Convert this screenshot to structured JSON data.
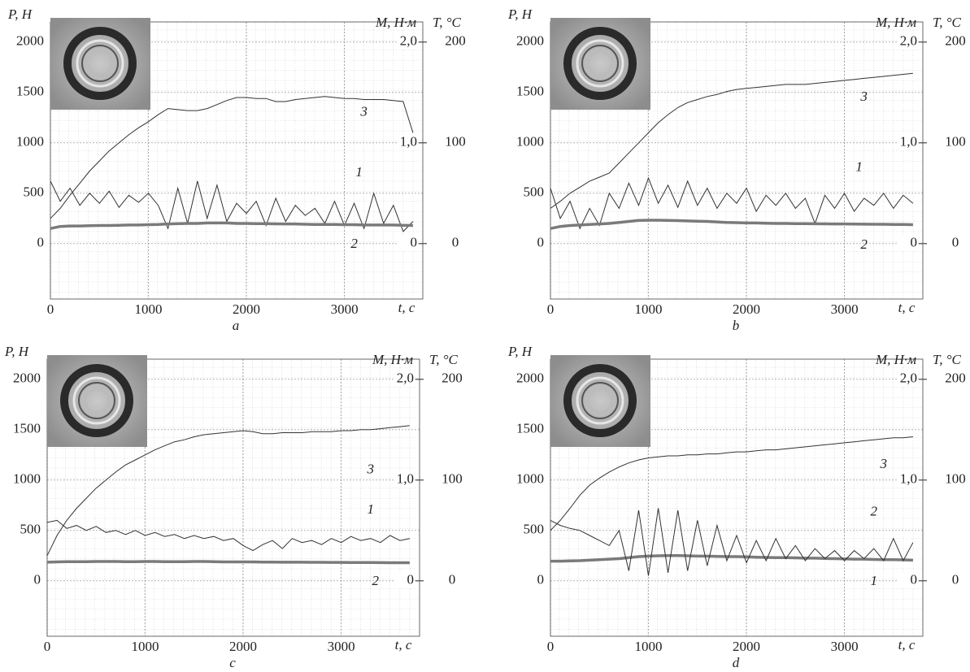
{
  "chart_data": [
    {
      "type": "line",
      "panel_label": "a",
      "y_label": "P, Н",
      "y2_label": "M, Н·м",
      "y3_label": "T, °C",
      "x_label": "t, c",
      "grid": true,
      "xlim": [
        0,
        3800
      ],
      "xticks": [
        0,
        1000,
        2000,
        3000
      ],
      "ylim": [
        -550,
        2200
      ],
      "yticks": [
        0,
        500,
        1000,
        1500,
        2000
      ],
      "y2lim": [
        -0.55,
        2.2
      ],
      "y2ticks": [
        0,
        {
          "value": 1,
          "label": "1,0"
        },
        {
          "value": 2,
          "label": "2,0"
        }
      ],
      "y3lim": [
        -55,
        220
      ],
      "y3ticks": [
        0,
        100,
        200
      ],
      "x": [
        0,
        100,
        200,
        300,
        400,
        500,
        600,
        700,
        800,
        900,
        1000,
        1100,
        1200,
        1300,
        1400,
        1500,
        1600,
        1700,
        1800,
        1900,
        2000,
        2100,
        2200,
        2300,
        2400,
        2500,
        2600,
        2700,
        2800,
        2900,
        3000,
        3100,
        3200,
        3300,
        3400,
        3500,
        3600,
        3700
      ],
      "series": [
        {
          "name": "1",
          "color": "#333333",
          "axis": "y2",
          "values": [
            0.62,
            0.42,
            0.55,
            0.38,
            0.5,
            0.4,
            0.52,
            0.36,
            0.48,
            0.41,
            0.5,
            0.38,
            0.15,
            0.55,
            0.2,
            0.62,
            0.25,
            0.58,
            0.22,
            0.4,
            0.3,
            0.42,
            0.18,
            0.45,
            0.22,
            0.38,
            0.28,
            0.35,
            0.2,
            0.42,
            0.18,
            0.4,
            0.15,
            0.5,
            0.2,
            0.38,
            0.12,
            0.22
          ]
        },
        {
          "name": "2",
          "color": "#7a7a7a",
          "values": [
            150,
            170,
            175,
            175,
            178,
            180,
            180,
            182,
            185,
            185,
            188,
            190,
            195,
            198,
            200,
            200,
            205,
            205,
            205,
            200,
            200,
            198,
            198,
            196,
            195,
            195,
            192,
            190,
            190,
            190,
            188,
            188,
            185,
            185,
            185,
            185,
            182,
            180
          ]
        },
        {
          "name": "3",
          "color": "#333333",
          "axis": "y3",
          "values": [
            25,
            35,
            48,
            60,
            72,
            82,
            92,
            100,
            108,
            115,
            121,
            128,
            134,
            133,
            132,
            132,
            134,
            138,
            142,
            145,
            145,
            144,
            144,
            141,
            141,
            143,
            144,
            145,
            146,
            145,
            144,
            144,
            143,
            143,
            143,
            142,
            141,
            110
          ]
        }
      ]
    },
    {
      "type": "line",
      "panel_label": "b",
      "y_label": "P, Н",
      "y2_label": "M, Н·м",
      "y3_label": "T, °C",
      "x_label": "t, c",
      "grid": true,
      "xlim": [
        0,
        3800
      ],
      "xticks": [
        0,
        1000,
        2000,
        3000
      ],
      "ylim": [
        -550,
        2200
      ],
      "yticks": [
        0,
        500,
        1000,
        1500,
        2000
      ],
      "y2lim": [
        -0.55,
        2.2
      ],
      "y2ticks": [
        0,
        {
          "value": 1,
          "label": "1,0"
        },
        {
          "value": 2,
          "label": "2,0"
        }
      ],
      "y3lim": [
        -55,
        220
      ],
      "y3ticks": [
        0,
        100,
        200
      ],
      "x": [
        0,
        100,
        200,
        300,
        400,
        500,
        600,
        700,
        800,
        900,
        1000,
        1100,
        1200,
        1300,
        1400,
        1500,
        1600,
        1700,
        1800,
        1900,
        2000,
        2100,
        2200,
        2300,
        2400,
        2500,
        2600,
        2700,
        2800,
        2900,
        3000,
        3100,
        3200,
        3300,
        3400,
        3500,
        3600,
        3700
      ],
      "series": [
        {
          "name": "1",
          "color": "#333333",
          "axis": "y2",
          "values": [
            0.55,
            0.25,
            0.42,
            0.15,
            0.35,
            0.18,
            0.5,
            0.35,
            0.6,
            0.38,
            0.65,
            0.4,
            0.58,
            0.36,
            0.62,
            0.38,
            0.55,
            0.35,
            0.5,
            0.4,
            0.55,
            0.32,
            0.48,
            0.38,
            0.5,
            0.35,
            0.45,
            0.2,
            0.48,
            0.35,
            0.5,
            0.32,
            0.45,
            0.38,
            0.5,
            0.35,
            0.48,
            0.4
          ]
        },
        {
          "name": "2",
          "color": "#7a7a7a",
          "values": [
            150,
            170,
            180,
            185,
            190,
            195,
            200,
            210,
            220,
            230,
            232,
            232,
            230,
            228,
            225,
            222,
            220,
            215,
            210,
            208,
            205,
            205,
            202,
            200,
            200,
            198,
            198,
            197,
            196,
            195,
            195,
            194,
            193,
            192,
            192,
            190,
            190,
            188
          ]
        },
        {
          "name": "3",
          "color": "#333333",
          "axis": "y3",
          "values": [
            35,
            42,
            50,
            56,
            62,
            66,
            70,
            80,
            90,
            100,
            110,
            120,
            128,
            135,
            140,
            143,
            146,
            148,
            151,
            153,
            154,
            155,
            156,
            157,
            158,
            158,
            158,
            159,
            160,
            161,
            162,
            163,
            164,
            165,
            166,
            167,
            168,
            169
          ]
        }
      ]
    },
    {
      "type": "line",
      "panel_label": "c",
      "y_label": "P, Н",
      "y2_label": "M, Н·м",
      "y3_label": "T, °C",
      "x_label": "t, c",
      "grid": true,
      "xlim": [
        0,
        3800
      ],
      "xticks": [
        0,
        1000,
        2000,
        3000
      ],
      "ylim": [
        -550,
        2200
      ],
      "yticks": [
        0,
        500,
        1000,
        1500,
        2000
      ],
      "y2lim": [
        -0.55,
        2.2
      ],
      "y2ticks": [
        0,
        {
          "value": 1,
          "label": "1,0"
        },
        {
          "value": 2,
          "label": "2,0"
        }
      ],
      "y3lim": [
        -55,
        220
      ],
      "y3ticks": [
        0,
        100,
        200
      ],
      "x": [
        0,
        100,
        200,
        300,
        400,
        500,
        600,
        700,
        800,
        900,
        1000,
        1100,
        1200,
        1300,
        1400,
        1500,
        1600,
        1700,
        1800,
        1900,
        2000,
        2100,
        2200,
        2300,
        2400,
        2500,
        2600,
        2700,
        2800,
        2900,
        3000,
        3100,
        3200,
        3300,
        3400,
        3500,
        3600,
        3700
      ],
      "series": [
        {
          "name": "1",
          "color": "#333333",
          "axis": "y2",
          "values": [
            0.58,
            0.6,
            0.52,
            0.55,
            0.5,
            0.54,
            0.48,
            0.5,
            0.46,
            0.5,
            0.45,
            0.48,
            0.44,
            0.46,
            0.42,
            0.45,
            0.42,
            0.44,
            0.4,
            0.42,
            0.35,
            0.3,
            0.36,
            0.4,
            0.32,
            0.42,
            0.38,
            0.4,
            0.36,
            0.42,
            0.38,
            0.44,
            0.4,
            0.42,
            0.38,
            0.45,
            0.4,
            0.42
          ]
        },
        {
          "name": "2",
          "color": "#7a7a7a",
          "values": [
            185,
            188,
            190,
            190,
            190,
            192,
            192,
            192,
            190,
            190,
            192,
            192,
            190,
            190,
            190,
            192,
            192,
            190,
            188,
            188,
            188,
            188,
            186,
            186,
            185,
            185,
            185,
            184,
            184,
            183,
            183,
            182,
            182,
            182,
            181,
            180,
            180,
            180
          ]
        },
        {
          "name": "3",
          "color": "#333333",
          "axis": "y3",
          "values": [
            25,
            45,
            60,
            72,
            82,
            92,
            100,
            108,
            115,
            120,
            125,
            130,
            134,
            138,
            140,
            143,
            145,
            146,
            147,
            148,
            149,
            148,
            146,
            146,
            147,
            147,
            147,
            148,
            148,
            148,
            149,
            149,
            150,
            150,
            151,
            152,
            153,
            154
          ]
        }
      ]
    },
    {
      "type": "line",
      "panel_label": "d",
      "y_label": "P, Н",
      "y2_label": "M, Н·м",
      "y3_label": "T, °C",
      "x_label": "t, c",
      "grid": true,
      "xlim": [
        0,
        3800
      ],
      "xticks": [
        0,
        1000,
        2000,
        3000
      ],
      "ylim": [
        -550,
        2200
      ],
      "yticks": [
        0,
        500,
        1000,
        1500,
        2000
      ],
      "y2lim": [
        -0.55,
        2.2
      ],
      "y2ticks": [
        0,
        {
          "value": 1,
          "label": "1,0"
        },
        {
          "value": 2,
          "label": "2,0"
        }
      ],
      "y3lim": [
        -55,
        220
      ],
      "y3ticks": [
        0,
        100,
        200
      ],
      "x": [
        0,
        100,
        200,
        300,
        400,
        500,
        600,
        700,
        800,
        900,
        1000,
        1100,
        1200,
        1300,
        1400,
        1500,
        1600,
        1700,
        1800,
        1900,
        2000,
        2100,
        2200,
        2300,
        2400,
        2500,
        2600,
        2700,
        2800,
        2900,
        3000,
        3100,
        3200,
        3300,
        3400,
        3500,
        3600,
        3700
      ],
      "series": [
        {
          "name": "1",
          "color": "#7a7a7a",
          "values": [
            195,
            195,
            198,
            200,
            205,
            210,
            215,
            220,
            230,
            240,
            245,
            248,
            250,
            250,
            248,
            245,
            245,
            242,
            240,
            240,
            238,
            235,
            232,
            230,
            230,
            228,
            225,
            225,
            222,
            220,
            218,
            215,
            215,
            212,
            210,
            210,
            208,
            205
          ]
        },
        {
          "name": "2",
          "color": "#333333",
          "axis": "y2",
          "values": [
            0.6,
            0.55,
            0.52,
            0.5,
            0.45,
            0.4,
            0.35,
            0.5,
            0.1,
            0.7,
            0.05,
            0.72,
            0.08,
            0.7,
            0.1,
            0.6,
            0.15,
            0.55,
            0.2,
            0.45,
            0.18,
            0.4,
            0.2,
            0.42,
            0.22,
            0.35,
            0.2,
            0.32,
            0.22,
            0.3,
            0.2,
            0.3,
            0.22,
            0.32,
            0.2,
            0.42,
            0.2,
            0.38
          ]
        },
        {
          "name": "3",
          "color": "#333333",
          "axis": "y3",
          "values": [
            50,
            60,
            72,
            85,
            95,
            102,
            108,
            113,
            117,
            120,
            122,
            123,
            124,
            124,
            125,
            125,
            126,
            126,
            127,
            128,
            128,
            129,
            130,
            130,
            131,
            132,
            133,
            134,
            135,
            136,
            137,
            138,
            139,
            140,
            141,
            142,
            142,
            143
          ]
        }
      ]
    }
  ]
}
